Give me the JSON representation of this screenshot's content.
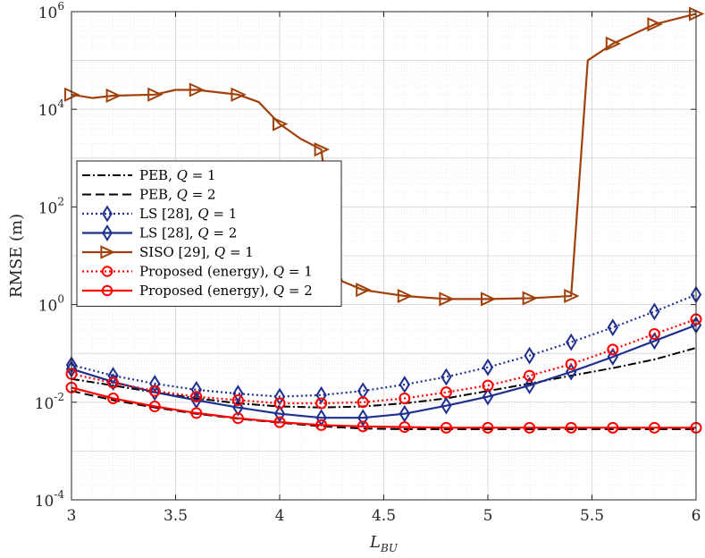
{
  "chart_data": {
    "type": "line",
    "xlabel": "L",
    "xlabel_sub": "BU",
    "ylabel": "RMSE (m)",
    "xlim": [
      3,
      6
    ],
    "ylim_log10": [
      -4,
      6
    ],
    "yscale": "log",
    "grid": true,
    "x_ticks": [
      "3",
      "3.5",
      "4",
      "4.5",
      "5",
      "5.5",
      "6"
    ],
    "y_ticks": [
      {
        "base": "10",
        "exp": "-4"
      },
      {
        "base": "10",
        "exp": "-2"
      },
      {
        "base": "10",
        "exp": "0"
      },
      {
        "base": "10",
        "exp": "2"
      },
      {
        "base": "10",
        "exp": "4"
      },
      {
        "base": "10",
        "exp": "6"
      }
    ],
    "legend_location": "center-left",
    "series": [
      {
        "name": "PEB, Q = 1",
        "legend": {
          "text": "PEB, ",
          "var": "Q",
          "eq": " = 1"
        },
        "color": "#000000",
        "dash": "9,3,2,3",
        "marker": "none",
        "width": 2,
        "x": [
          3.0,
          3.2,
          3.4,
          3.6,
          3.8,
          4.0,
          4.2,
          4.4,
          4.6,
          4.8,
          5.0,
          5.2,
          5.4,
          5.6,
          5.8,
          6.0
        ],
        "y": [
          0.03,
          0.022,
          0.016,
          0.012,
          0.0095,
          0.0082,
          0.0078,
          0.0082,
          0.0095,
          0.012,
          0.017,
          0.024,
          0.035,
          0.05,
          0.075,
          0.13
        ]
      },
      {
        "name": "PEB, Q = 2",
        "legend": {
          "text": "PEB, ",
          "var": "Q",
          "eq": " = 2"
        },
        "color": "#000000",
        "dash": "10,5",
        "marker": "none",
        "width": 2,
        "x": [
          3.0,
          3.2,
          3.4,
          3.6,
          3.8,
          4.0,
          4.2,
          4.4,
          4.6,
          4.8,
          5.0,
          5.2,
          5.4,
          5.6,
          5.8,
          6.0
        ],
        "y": [
          0.017,
          0.011,
          0.0078,
          0.0058,
          0.0046,
          0.0038,
          0.0032,
          0.0029,
          0.0028,
          0.0028,
          0.0028,
          0.0028,
          0.0028,
          0.0028,
          0.0028,
          0.0028
        ]
      },
      {
        "name": "LS [28], Q = 1",
        "legend": {
          "text": "LS [28], ",
          "var": "Q",
          "eq": " = 1"
        },
        "color": "#1f2f8f",
        "dash": "2,3",
        "marker": "diamond",
        "width": 2.2,
        "x": [
          3.0,
          3.2,
          3.4,
          3.6,
          3.8,
          4.0,
          4.2,
          4.4,
          4.6,
          4.8,
          5.0,
          5.2,
          5.4,
          5.6,
          5.8,
          6.0
        ],
        "y": [
          0.058,
          0.035,
          0.024,
          0.018,
          0.015,
          0.013,
          0.014,
          0.017,
          0.023,
          0.033,
          0.052,
          0.09,
          0.17,
          0.34,
          0.72,
          1.6
        ]
      },
      {
        "name": "LS [28], Q = 2",
        "legend": {
          "text": "LS [28], ",
          "var": "Q",
          "eq": " = 2"
        },
        "color": "#1f2f8f",
        "dash": "",
        "marker": "diamond",
        "width": 2.2,
        "x": [
          3.0,
          3.2,
          3.4,
          3.6,
          3.8,
          4.0,
          4.2,
          4.4,
          4.6,
          4.8,
          5.0,
          5.2,
          5.4,
          5.6,
          5.8,
          6.0
        ],
        "y": [
          0.048,
          0.026,
          0.016,
          0.011,
          0.0078,
          0.0058,
          0.0048,
          0.0048,
          0.0058,
          0.0085,
          0.013,
          0.022,
          0.042,
          0.085,
          0.18,
          0.38
        ]
      },
      {
        "name": "SISO [29], Q = 1",
        "legend": {
          "text": "SISO [29], ",
          "var": "Q",
          "eq": " = 1"
        },
        "color": "#a0400a",
        "dash": "",
        "marker": "triangle-right",
        "width": 2.2,
        "x": [
          3.0,
          3.1,
          3.2,
          3.4,
          3.5,
          3.6,
          3.8,
          3.9,
          4.0,
          4.1,
          4.2,
          4.22,
          4.25,
          4.3,
          4.4,
          4.6,
          4.8,
          5.0,
          5.2,
          5.4,
          5.48,
          5.6,
          5.8,
          6.0
        ],
        "y": [
          20000,
          17000,
          19000,
          20000,
          25000,
          25000,
          20000,
          14000,
          5000,
          2500,
          1500,
          300,
          10,
          3,
          2,
          1.5,
          1.3,
          1.3,
          1.35,
          1.5,
          100000,
          220000,
          550000,
          900000
        ],
        "marker_x": [
          3.0,
          3.2,
          3.4,
          3.6,
          3.8,
          4.0,
          4.2,
          4.4,
          4.6,
          4.8,
          5.0,
          5.2,
          5.4,
          5.6,
          5.8,
          6.0
        ]
      },
      {
        "name": "Proposed (energy), Q = 1",
        "legend": {
          "text": "Proposed (energy), ",
          "var": "Q",
          "eq": " = 1"
        },
        "color": "#ff0000",
        "dash": "2,3",
        "marker": "circle",
        "width": 2.2,
        "x": [
          3.0,
          3.2,
          3.4,
          3.6,
          3.8,
          4.0,
          4.2,
          4.4,
          4.6,
          4.8,
          5.0,
          5.2,
          5.4,
          5.6,
          5.8,
          6.0
        ],
        "y": [
          0.038,
          0.025,
          0.017,
          0.013,
          0.011,
          0.0095,
          0.0095,
          0.01,
          0.012,
          0.016,
          0.022,
          0.035,
          0.06,
          0.12,
          0.25,
          0.5
        ]
      },
      {
        "name": "Proposed (energy), Q = 2",
        "legend": {
          "text": "Proposed (energy), ",
          "var": "Q",
          "eq": " = 2"
        },
        "color": "#ff0000",
        "dash": "",
        "marker": "circle",
        "width": 2.2,
        "x": [
          3.0,
          3.2,
          3.4,
          3.6,
          3.8,
          4.0,
          4.2,
          4.4,
          4.6,
          4.8,
          5.0,
          5.2,
          5.4,
          5.6,
          5.8,
          6.0
        ],
        "y": [
          0.02,
          0.012,
          0.0082,
          0.006,
          0.0047,
          0.0039,
          0.0034,
          0.0032,
          0.0031,
          0.003,
          0.003,
          0.003,
          0.003,
          0.003,
          0.003,
          0.003
        ]
      }
    ]
  }
}
